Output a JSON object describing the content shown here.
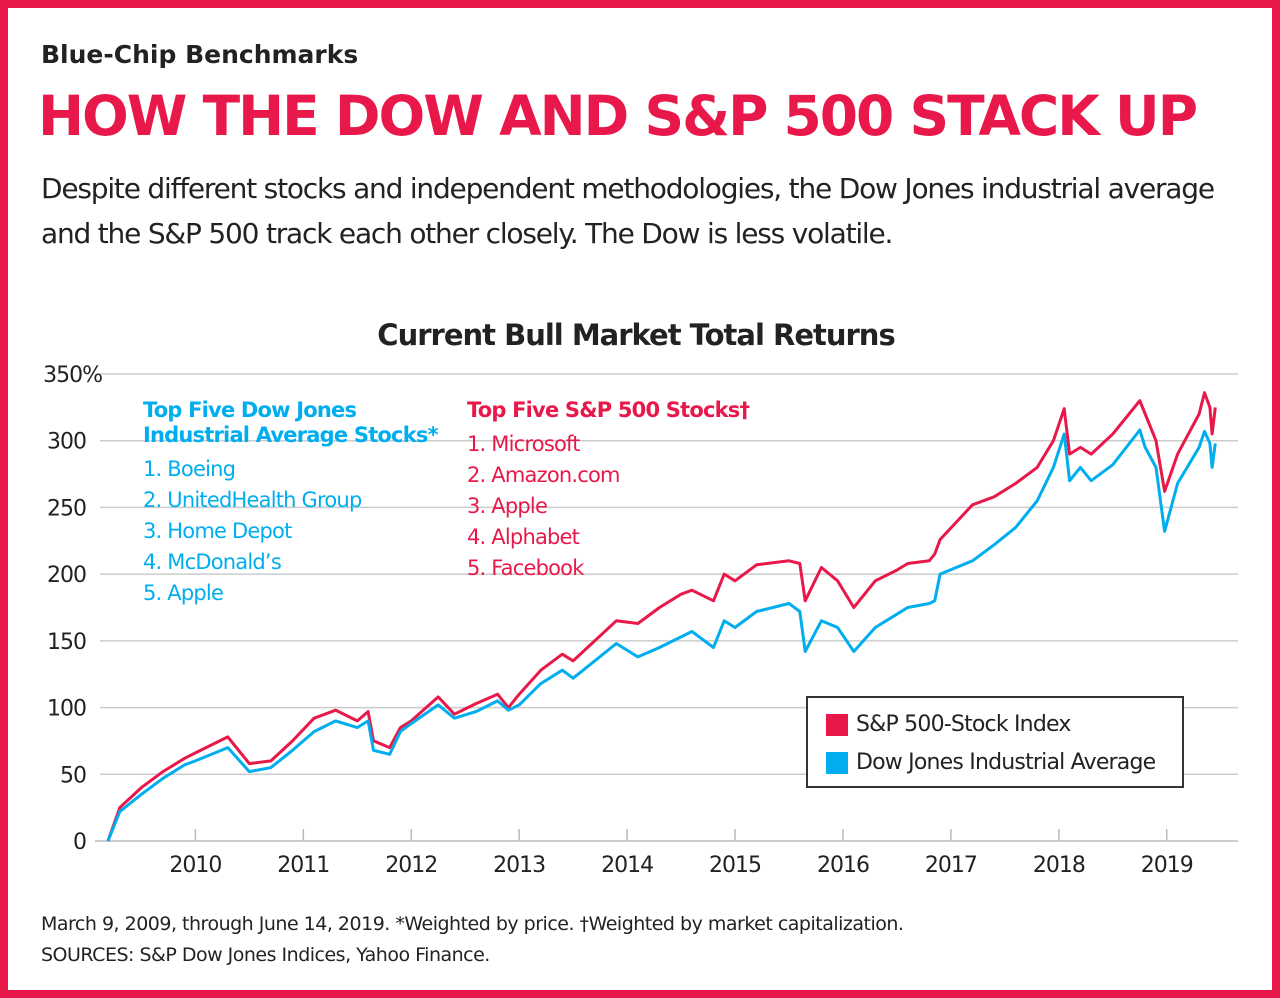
{
  "header": {
    "kicker": "Blue-Chip Benchmarks",
    "title": "HOW THE DOW AND S&P 500 STACK UP",
    "dek": "Despite different stocks and independent methodologies, the Dow Jones industrial average and the S&P 500 track each other closely. The Dow is less volatile."
  },
  "lists": {
    "dow": {
      "heading1": "Top Five Dow Jones",
      "heading2": "Industrial Average Stocks*",
      "items": [
        "1. Boeing",
        "2. UnitedHealth Group",
        "3. Home Depot",
        "4. McDonald’s",
        "5. Apple"
      ]
    },
    "sp": {
      "heading": "Top Five S&P 500 Stocks†",
      "items": [
        "1. Microsoft",
        "2. Amazon.com",
        "3. Apple",
        "4. Alphabet",
        "5. Facebook"
      ]
    }
  },
  "footer": {
    "note": "March 9, 2009, through June 14, 2019.  *Weighted by price.  †Weighted by market capitalization.",
    "sources": "SOURCES: S&P Dow Jones Indices, Yahoo Finance."
  },
  "colors": {
    "sp": "#e8194a",
    "dow": "#00aeef",
    "grid": "#cccccc",
    "frame": "#e8194a"
  },
  "chart_data": {
    "type": "line",
    "title": "Current Bull Market Total Returns",
    "xlabel": "",
    "ylabel": "",
    "ylim": [
      0,
      350
    ],
    "xlim": [
      2009.07,
      2019.66
    ],
    "yticks": [
      0,
      50,
      100,
      150,
      200,
      250,
      300,
      350
    ],
    "ytick_labels": [
      "0",
      "50",
      "100",
      "150",
      "200",
      "250",
      "300",
      "350%"
    ],
    "xticks": [
      2010,
      2011,
      2012,
      2013,
      2014,
      2015,
      2016,
      2017,
      2018,
      2019
    ],
    "xtick_labels": [
      "2010",
      "2011",
      "2012",
      "2013",
      "2014",
      "2015",
      "2016",
      "2017",
      "2018",
      "2019"
    ],
    "grid": true,
    "legend": "bottom-right",
    "x": [
      2009.19,
      2009.3,
      2009.5,
      2009.7,
      2009.9,
      2010.0,
      2010.3,
      2010.5,
      2010.7,
      2010.9,
      2011.1,
      2011.3,
      2011.5,
      2011.6,
      2011.65,
      2011.8,
      2011.9,
      2012.0,
      2012.25,
      2012.4,
      2012.6,
      2012.8,
      2012.9,
      2013.0,
      2013.2,
      2013.4,
      2013.5,
      2013.7,
      2013.9,
      2014.1,
      2014.3,
      2014.5,
      2014.6,
      2014.8,
      2014.9,
      2015.0,
      2015.2,
      2015.5,
      2015.6,
      2015.65,
      2015.8,
      2015.95,
      2016.1,
      2016.3,
      2016.5,
      2016.6,
      2016.8,
      2016.85,
      2016.9,
      2017.2,
      2017.4,
      2017.6,
      2017.8,
      2017.95,
      2018.05,
      2018.1,
      2018.2,
      2018.3,
      2018.5,
      2018.75,
      2018.8,
      2018.9,
      2018.98,
      2019.1,
      2019.3,
      2019.35,
      2019.4,
      2019.42,
      2019.45
    ],
    "series": [
      {
        "name": "S&P 500-Stock Index",
        "color": "#e8194a",
        "values": [
          0,
          25,
          40,
          52,
          62,
          66,
          78,
          58,
          60,
          75,
          92,
          98,
          90,
          97,
          75,
          70,
          85,
          90,
          108,
          95,
          103,
          110,
          100,
          110,
          128,
          140,
          135,
          150,
          165,
          163,
          175,
          185,
          188,
          180,
          200,
          195,
          207,
          210,
          208,
          180,
          205,
          195,
          175,
          195,
          203,
          208,
          210,
          215,
          226,
          252,
          258,
          268,
          280,
          300,
          324,
          290,
          295,
          290,
          305,
          330,
          320,
          300,
          262,
          290,
          320,
          336,
          325,
          305,
          325
        ]
      },
      {
        "name": "Dow Jones Industrial Average",
        "color": "#00aeef",
        "values": [
          0,
          22,
          35,
          47,
          57,
          60,
          70,
          52,
          55,
          68,
          82,
          90,
          85,
          90,
          68,
          65,
          82,
          88,
          102,
          92,
          97,
          105,
          98,
          102,
          118,
          128,
          122,
          135,
          148,
          138,
          145,
          153,
          157,
          145,
          165,
          160,
          172,
          178,
          172,
          142,
          165,
          160,
          142,
          160,
          170,
          175,
          178,
          180,
          200,
          210,
          222,
          235,
          255,
          280,
          305,
          270,
          280,
          270,
          282,
          308,
          295,
          280,
          232,
          268,
          295,
          307,
          298,
          280,
          298
        ]
      }
    ]
  }
}
